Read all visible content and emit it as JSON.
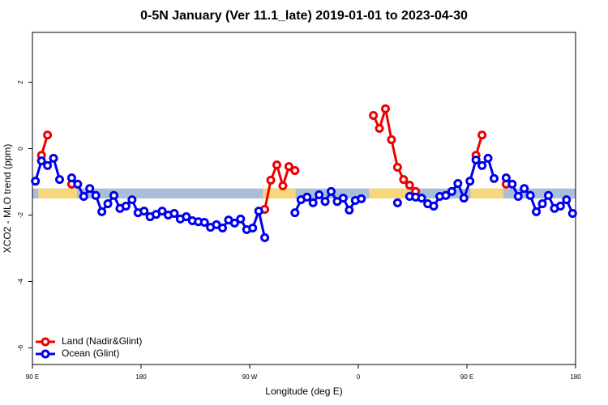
{
  "chart_data": {
    "type": "line",
    "title": "0-5N January (Ver 11.1_late)   2019-01-01 to 2023-04-30",
    "xlabel": "Longitude (deg E)",
    "ylabel": "XCO2 - MLO trend (ppm)",
    "x": [
      92.5,
      97.5,
      102.5,
      107.5,
      112.5,
      117.5,
      122.5,
      127.5,
      132.5,
      137.5,
      142.5,
      147.5,
      152.5,
      157.5,
      162.5,
      167.5,
      172.5,
      177.5,
      182.5,
      187.5,
      192.5,
      197.5,
      202.5,
      207.5,
      212.5,
      217.5,
      222.5,
      227.5,
      232.5,
      237.5,
      242.5,
      247.5,
      252.5,
      257.5,
      262.5,
      267.5,
      272.5,
      277.5,
      282.5,
      287.5,
      292.5,
      297.5,
      302.5,
      307.5,
      312.5,
      317.5,
      322.5,
      327.5,
      332.5,
      337.5,
      342.5,
      347.5,
      352.5,
      357.5,
      362.5,
      367.5,
      372.5,
      377.5,
      382.5,
      387.5,
      392.5,
      397.5,
      402.5,
      407.5,
      412.5,
      417.5,
      422.5,
      427.5,
      432.5,
      437.5,
      442.5,
      447.5,
      452.5,
      457.5,
      462.5,
      467.5,
      472.5,
      477.5,
      482.5,
      487.5,
      492.5,
      497.5,
      502.5,
      507.5,
      512.5,
      517.5,
      522.5,
      527.5,
      532.5,
      537.5
    ],
    "series": [
      {
        "name": "Land (Nadir&Glint)",
        "color": "#ee0000",
        "values": [
          null,
          -0.2,
          0.41,
          null,
          null,
          null,
          -1.07,
          null,
          null,
          null,
          null,
          null,
          null,
          null,
          null,
          null,
          null,
          null,
          null,
          null,
          null,
          null,
          null,
          null,
          null,
          null,
          null,
          null,
          null,
          null,
          null,
          null,
          null,
          null,
          null,
          null,
          null,
          null,
          -1.83,
          -0.95,
          -0.49,
          -1.12,
          -0.54,
          -0.66,
          null,
          null,
          null,
          null,
          null,
          null,
          null,
          null,
          null,
          null,
          null,
          null,
          1.0,
          0.61,
          1.2,
          0.27,
          -0.56,
          -0.93,
          -1.1,
          -1.29,
          null,
          null,
          null,
          null,
          null,
          null,
          null,
          null,
          null,
          -0.2,
          0.41,
          null,
          null,
          null,
          -1.07,
          null,
          null,
          null,
          null,
          null,
          null,
          null,
          null,
          null,
          null,
          null
        ]
      },
      {
        "name": "Ocean (Glint)",
        "color": "#0000ee",
        "values": [
          -0.98,
          -0.37,
          -0.51,
          -0.29,
          -0.93,
          null,
          -0.88,
          -1.07,
          -1.44,
          -1.2,
          -1.41,
          -1.9,
          -1.66,
          -1.41,
          -1.8,
          -1.73,
          -1.54,
          -1.93,
          -1.88,
          -2.05,
          -1.98,
          -1.88,
          -2.0,
          -1.95,
          -2.12,
          -2.05,
          -2.17,
          -2.2,
          -2.22,
          -2.37,
          -2.29,
          -2.39,
          -2.15,
          -2.24,
          -2.12,
          -2.44,
          -2.39,
          -1.88,
          -2.68,
          null,
          null,
          null,
          null,
          -1.93,
          -1.54,
          -1.46,
          -1.63,
          -1.39,
          -1.59,
          -1.29,
          -1.59,
          -1.49,
          -1.85,
          -1.56,
          -1.51,
          null,
          null,
          null,
          null,
          null,
          -1.63,
          null,
          -1.44,
          -1.46,
          -1.49,
          -1.66,
          -1.73,
          -1.44,
          -1.41,
          -1.29,
          -1.05,
          -1.49,
          -0.98,
          -0.34,
          -0.51,
          -0.29,
          -0.9,
          null,
          -0.88,
          -1.07,
          -1.44,
          -1.2,
          -1.41,
          -1.9,
          -1.66,
          -1.41,
          -1.8,
          -1.73,
          -1.54,
          -1.95
        ]
      }
    ],
    "xlim": [
      90,
      540
    ],
    "xticks": [
      {
        "value": 90,
        "label": "90 E"
      },
      180,
      {
        "value": 270,
        "label": "90 W"
      },
      {
        "value": 360,
        "label": "0"
      },
      {
        "value": 450,
        "label": "90 E"
      },
      {
        "value": 540,
        "label": "180"
      }
    ],
    "ylim": [
      -6.5,
      3.5
    ],
    "yticks": [
      -6,
      -4,
      -2,
      0,
      2
    ],
    "legend": "bottom-left",
    "surface_band": {
      "y": [
        -1.5,
        -1.2
      ],
      "ocean_color": "#a9bfd9",
      "land_color": "#f8d77a",
      "land": [
        [
          95,
          127
        ],
        [
          281,
          308
        ],
        [
          369,
          402
        ],
        [
          453,
          480
        ]
      ]
    }
  }
}
